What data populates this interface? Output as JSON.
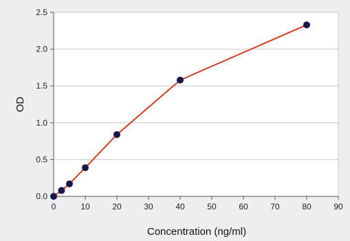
{
  "chart_data": {
    "type": "line",
    "title": "",
    "xlabel": "Concentration (ng/ml)",
    "ylabel": "OD",
    "xlim": [
      0,
      90
    ],
    "ylim": [
      0,
      2.5
    ],
    "xticks": [
      "0",
      "10",
      "20",
      "30",
      "40",
      "50",
      "60",
      "70",
      "80",
      "90"
    ],
    "yticks": [
      "0.0",
      "0.5",
      "1.0",
      "1.5",
      "2.0",
      "2.5"
    ],
    "grid": true,
    "series": [
      {
        "x": [
          0,
          2.5,
          5,
          10,
          20,
          40,
          80
        ],
        "y": [
          0.0,
          0.08,
          0.17,
          0.39,
          0.84,
          1.58,
          2.33
        ]
      }
    ],
    "colors": {
      "line": "#d9381e",
      "marker": "#181848",
      "grid": "#c8c8c8",
      "axis": "#555555",
      "plot_bg": "#ffffff",
      "page_bg": "#eceef0"
    }
  }
}
